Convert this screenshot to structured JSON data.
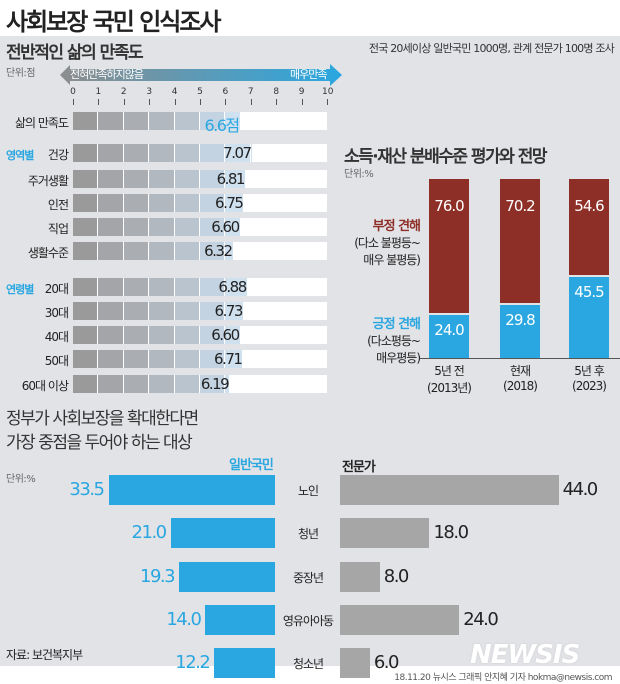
{
  "title": "사회보장 국민 인식조사",
  "survey_note": "전국 20세이상 일반국민 1000명, 관계 전문가 100명 조사",
  "source": "자료: 보건복지부",
  "credit": "18.11.20 뉴시스 그래픽 안지혜 기자 hokma@newsis.com",
  "logo": "NEWSIS",
  "colors": {
    "blue": "#2aa7e0",
    "red": "#8e2f27",
    "gray": "#a6a6a6"
  },
  "chart_data": [
    {
      "type": "bar",
      "title": "전반적인 삶의 만족도",
      "unit": "단위:점",
      "axis_left": "전혀만족하지않음",
      "axis_right": "매우만족",
      "xlim": [
        0,
        10
      ],
      "ticks": [
        "0",
        "1",
        "2",
        "3",
        "4",
        "5",
        "6",
        "7",
        "8",
        "9",
        "10"
      ],
      "groups": {
        "area": "영역별",
        "age": "연령별"
      },
      "rows": [
        {
          "label": "삶의 만족도",
          "value": 6.6,
          "text": "6.6점",
          "group": ""
        },
        {
          "label": "건강",
          "value": 7.07,
          "text": "7.07",
          "group": "area"
        },
        {
          "label": "주거생활",
          "value": 6.81,
          "text": "6.81",
          "group": ""
        },
        {
          "label": "인전",
          "value": 6.75,
          "text": "6.75",
          "group": ""
        },
        {
          "label": "직업",
          "value": 6.6,
          "text": "6.60",
          "group": ""
        },
        {
          "label": "생활수준",
          "value": 6.32,
          "text": "6.32",
          "group": ""
        },
        {
          "label": "20대",
          "value": 6.88,
          "text": "6.88",
          "group": "age"
        },
        {
          "label": "30대",
          "value": 6.73,
          "text": "6.73",
          "group": ""
        },
        {
          "label": "40대",
          "value": 6.6,
          "text": "6.60",
          "group": ""
        },
        {
          "label": "50대",
          "value": 6.71,
          "text": "6.71",
          "group": ""
        },
        {
          "label": "60대 이상",
          "value": 6.19,
          "text": "6.19",
          "group": ""
        }
      ]
    },
    {
      "type": "bar",
      "stacked": true,
      "title": "소득·재산 분배수준 평가와 전망",
      "unit": "단위:%",
      "categories": [
        [
          "5년 전",
          "(2013년)"
        ],
        [
          "현재",
          "(2018)"
        ],
        [
          "5년 후",
          "(2023)"
        ]
      ],
      "series": [
        {
          "name": "부정 견해",
          "sub": [
            "(다소 불평등~",
            "매우 불평등)"
          ],
          "values": [
            76.0,
            70.2,
            54.6
          ],
          "labels": [
            "76.0",
            "70.2",
            "54.6"
          ]
        },
        {
          "name": "긍정 견해",
          "sub": [
            "(다소평등~",
            "매우평등)"
          ],
          "values": [
            24.0,
            29.8,
            45.5
          ],
          "labels": [
            "24.0",
            "29.8",
            "45.5"
          ]
        }
      ]
    },
    {
      "type": "bar",
      "orientation": "horizontal",
      "title": [
        "정부가 사회보장을 확대한다면",
        "가장 중점을 두어야 하는 대상"
      ],
      "unit": "단위:%",
      "categories": [
        "노인",
        "청년",
        "중장년",
        "영유아아동",
        "청소년"
      ],
      "series": [
        {
          "name": "일반국민",
          "values": [
            33.5,
            21.0,
            19.3,
            14.0,
            12.2
          ],
          "labels": [
            "33.5",
            "21.0",
            "19.3",
            "14.0",
            "12.2"
          ]
        },
        {
          "name": "전문가",
          "values": [
            44.0,
            18.0,
            8.0,
            24.0,
            6.0
          ],
          "labels": [
            "44.0",
            "18.0",
            "8.0",
            "24.0",
            "6.0"
          ]
        }
      ]
    }
  ]
}
